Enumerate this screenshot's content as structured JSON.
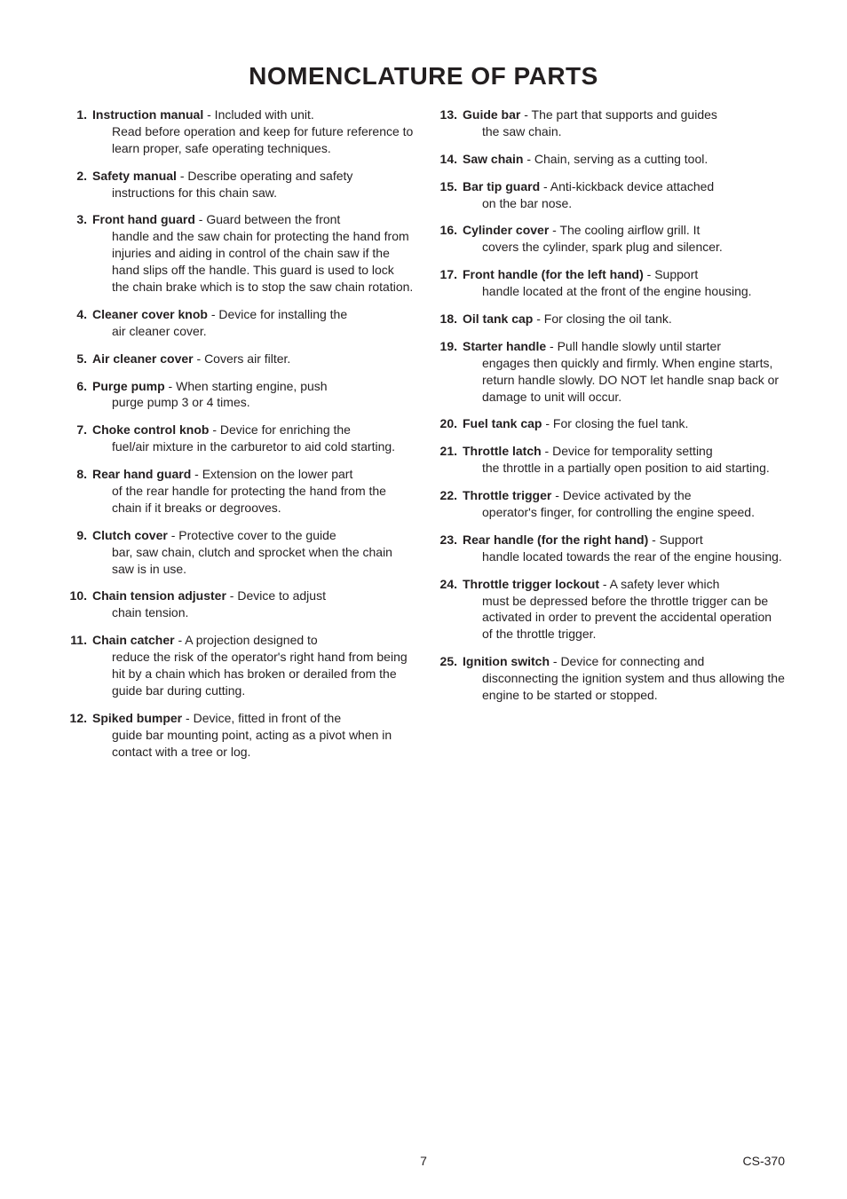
{
  "title": "NOMENCLATURE OF PARTS",
  "page_number": "7",
  "model": "CS-370",
  "font_family": "Arial, Helvetica, sans-serif",
  "title_fontsize": 28,
  "body_fontsize": 14,
  "text_color": "#231f20",
  "background_color": "#ffffff",
  "columns": [
    [
      {
        "num": "1.",
        "label": "Instruction manual",
        "lead": " - Included with unit.",
        "cont": "Read before operation and keep for future reference to learn proper, safe operating techniques."
      },
      {
        "num": "2.",
        "label": "Safety manual",
        "lead": " - Describe operating and safety",
        "cont": "instructions for this chain saw."
      },
      {
        "num": "3.",
        "label": "Front hand guard",
        "lead": " - Guard between the front",
        "cont": "handle and the saw chain for protecting the hand from injuries and aiding in control of the chain saw if the hand slips off the handle. This guard is used to lock the chain brake which is to stop the saw chain rotation."
      },
      {
        "num": "4.",
        "label": "Cleaner cover knob",
        "lead": " - Device for installing the",
        "cont": "air cleaner cover."
      },
      {
        "num": "5.",
        "label": "Air cleaner cover",
        "lead": " - Covers air filter.",
        "cont": ""
      },
      {
        "num": "6.",
        "label": "Purge pump",
        "lead": " - When starting engine, push",
        "cont": "purge pump 3 or 4 times."
      },
      {
        "num": "7.",
        "label": "Choke control knob",
        "lead": " - Device for enriching the",
        "cont": "fuel/air mixture in the carburetor to aid cold starting."
      },
      {
        "num": "8.",
        "label": "Rear hand guard",
        "lead": " - Extension on the lower part",
        "cont": "of the rear handle for protecting the hand from the chain if it breaks or degrooves."
      },
      {
        "num": "9.",
        "label": "Clutch cover",
        "lead": " - Protective cover to the guide",
        "cont": "bar, saw chain, clutch and sprocket when the chain saw is in use."
      },
      {
        "num": "10.",
        "label": "Chain tension adjuster",
        "lead": " - Device to adjust",
        "cont": "chain tension."
      },
      {
        "num": "11.",
        "label": "Chain catcher",
        "lead": " - A projection designed to",
        "cont": "reduce the risk of the operator's right hand from being hit by a chain which has broken or derailed from the guide bar during cutting."
      },
      {
        "num": "12.",
        "label": "Spiked bumper",
        "lead": " - Device, fitted in front of the",
        "cont": "guide bar mounting point, acting as a pivot when in contact with a tree or log."
      }
    ],
    [
      {
        "num": "13.",
        "label": "Guide bar",
        "lead": " - The part that supports and guides",
        "cont": "the saw chain."
      },
      {
        "num": "14.",
        "label": "Saw chain",
        "lead": " - Chain, serving as a cutting tool.",
        "cont": ""
      },
      {
        "num": "15.",
        "label": "Bar tip guard",
        "lead": " - Anti-kickback device attached",
        "cont": "on the bar nose."
      },
      {
        "num": "16.",
        "label": "Cylinder cover",
        "lead": " - The cooling airflow grill. It",
        "cont": "covers the cylinder, spark plug and silencer."
      },
      {
        "num": "17.",
        "label": "Front handle (for the left hand)",
        "lead": " - Support",
        "cont": "handle located at the front of the engine housing."
      },
      {
        "num": "18.",
        "label": "Oil tank cap",
        "lead": " - For closing the oil tank.",
        "cont": ""
      },
      {
        "num": "19.",
        "label": "Starter handle",
        "lead": " - Pull handle slowly until starter",
        "cont": "engages then quickly and firmly. When engine starts, return handle slowly. DO NOT let handle snap back or damage to unit will occur."
      },
      {
        "num": "20.",
        "label": "Fuel tank cap",
        "lead": " - For closing the fuel tank.",
        "cont": ""
      },
      {
        "num": "21.",
        "label": "Throttle latch",
        "lead": " - Device for temporality setting",
        "cont": "the throttle in a partially open position to aid starting."
      },
      {
        "num": "22.",
        "label": "Throttle trigger",
        "lead": " - Device activated by the",
        "cont": "operator's finger, for controlling the engine speed."
      },
      {
        "num": "23.",
        "label": "Rear handle (for the right hand)",
        "lead": " - Support",
        "cont": "handle located towards the rear of the engine housing."
      },
      {
        "num": "24.",
        "label": "Throttle trigger lockout",
        "lead": " - A safety lever which",
        "cont": "must be depressed before the throttle trigger can be activated in order to prevent the accidental operation of the throttle trigger."
      },
      {
        "num": "25.",
        "label": "Ignition switch",
        "lead": " - Device for connecting and",
        "cont": "disconnecting the ignition system and thus allowing the engine to be started or stopped."
      }
    ]
  ]
}
